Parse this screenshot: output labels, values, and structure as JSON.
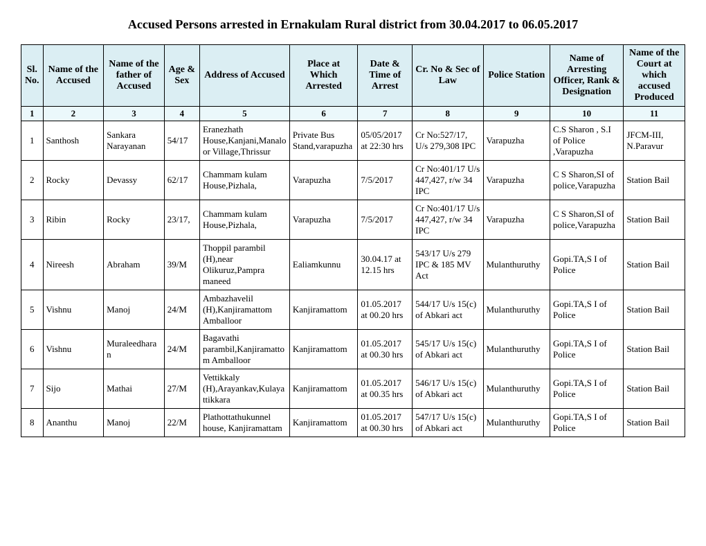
{
  "title": "Accused Persons arrested in   Ernakulam Rural  district from   30.04.2017 to 06.05.2017",
  "headers": {
    "h1": "Sl. No.",
    "h2": "Name of the Accused",
    "h3": "Name of the father of Accused",
    "h4": "Age & Sex",
    "h5": "Address of Accused",
    "h6": "Place at Which Arrested",
    "h7": "Date & Time of Arrest",
    "h8": "Cr. No & Sec of Law",
    "h9": "Police Station",
    "h10": "Name of Arresting Officer, Rank & Designation",
    "h11": "Name of the Court at which accused Produced"
  },
  "numrow": {
    "n1": "1",
    "n2": "2",
    "n3": "3",
    "n4": "4",
    "n5": "5",
    "n6": "6",
    "n7": "7",
    "n8": "8",
    "n9": "9",
    "n10": "10",
    "n11": "11"
  },
  "rows": [
    {
      "sl": "1",
      "name": "Santhosh",
      "father": "Sankara Narayanan",
      "age": "54/17",
      "addr": "Eranezhath House,Kanjani,Manaloor Village,Thrissur",
      "place": "Private Bus Stand,varapuzha",
      "dt": "05/05/2017 at 22:30 hrs",
      "cr": "Cr No:527/17, U/s 279,308 IPC",
      "ps": "Varapuzha",
      "off": "C.S Sharon , S.I of Police ,Varapuzha",
      "court": "JFCM-III, N.Paravur"
    },
    {
      "sl": "2",
      "name": "Rocky",
      "father": "Devassy",
      "age": "62/17",
      "addr": "Chammam kulam House,Pizhala,",
      "place": "Varapuzha",
      "dt": "7/5/2017",
      "cr": "Cr No:401/17 U/s 447,427, r/w 34 IPC",
      "ps": "Varapuzha",
      "off": "C S Sharon,SI of police,Varapuzha",
      "court": "Station Bail"
    },
    {
      "sl": "3",
      "name": "Ribin",
      "father": "Rocky",
      "age": "23/17,",
      "addr": "Chammam kulam House,Pizhala,",
      "place": "Varapuzha",
      "dt": "7/5/2017",
      "cr": "Cr No:401/17 U/s 447,427, r/w 34 IPC",
      "ps": "Varapuzha",
      "off": "C S Sharon,SI of police,Varapuzha",
      "court": "Station Bail"
    },
    {
      "sl": "4",
      "name": "Nireesh",
      "father": "Abraham",
      "age": "39/M",
      "addr": "Thoppil parambil (H),near Olikuruz,Pampra maneed",
      "place": "Ealiamkunnu",
      "dt": "30.04.17 at 12.15 hrs",
      "cr": "543/17 U/s 279 IPC & 185 MV Act",
      "ps": "Mulanthuruthy",
      "off": "Gopi.TA,S I of Police",
      "court": "Station Bail"
    },
    {
      "sl": "5",
      "name": "Vishnu",
      "father": "Manoj",
      "age": "24/M",
      "addr": "Ambazhavelil (H),Kanjiramattom Amballoor",
      "place": "Kanjiramattom",
      "dt": "01.05.2017 at 00.20 hrs",
      "cr": "544/17 U/s 15(c) of Abkari act",
      "ps": "Mulanthuruthy",
      "off": "Gopi.TA,S I of Police",
      "court": "Station Bail"
    },
    {
      "sl": "6",
      "name": "Vishnu",
      "father": "Muraleedharan",
      "age": "24/M",
      "addr": "Bagavathi parambil,Kanjiramattom Amballoor",
      "place": "Kanjiramattom",
      "dt": "01.05.2017 at 00.30 hrs",
      "cr": "545/17 U/s 15(c) of Abkari act",
      "ps": "Mulanthuruthy",
      "off": "Gopi.TA,S I of Police",
      "court": "Station Bail"
    },
    {
      "sl": "7",
      "name": "Sijo",
      "father": "Mathai",
      "age": "27/M",
      "addr": "Vettikkaly (H),Arayankav,Kulayattikkara",
      "place": "Kanjiramattom",
      "dt": "01.05.2017 at 00.35 hrs",
      "cr": "546/17 U/s 15(c) of Abkari act",
      "ps": "Mulanthuruthy",
      "off": "Gopi.TA,S I of Police",
      "court": "Station Bail"
    },
    {
      "sl": "8",
      "name": "Ananthu",
      "father": "Manoj",
      "age": "22/M",
      "addr": "Plathottathukunnel house, Kanjiramattam",
      "place": "Kanjiramattom",
      "dt": "01.05.2017 at 00.30 hrs",
      "cr": "547/17 U/s 15(c) of Abkari act",
      "ps": "Mulanthuruthy",
      "off": "Gopi.TA,S I of Police",
      "court": "Station Bail"
    }
  ]
}
